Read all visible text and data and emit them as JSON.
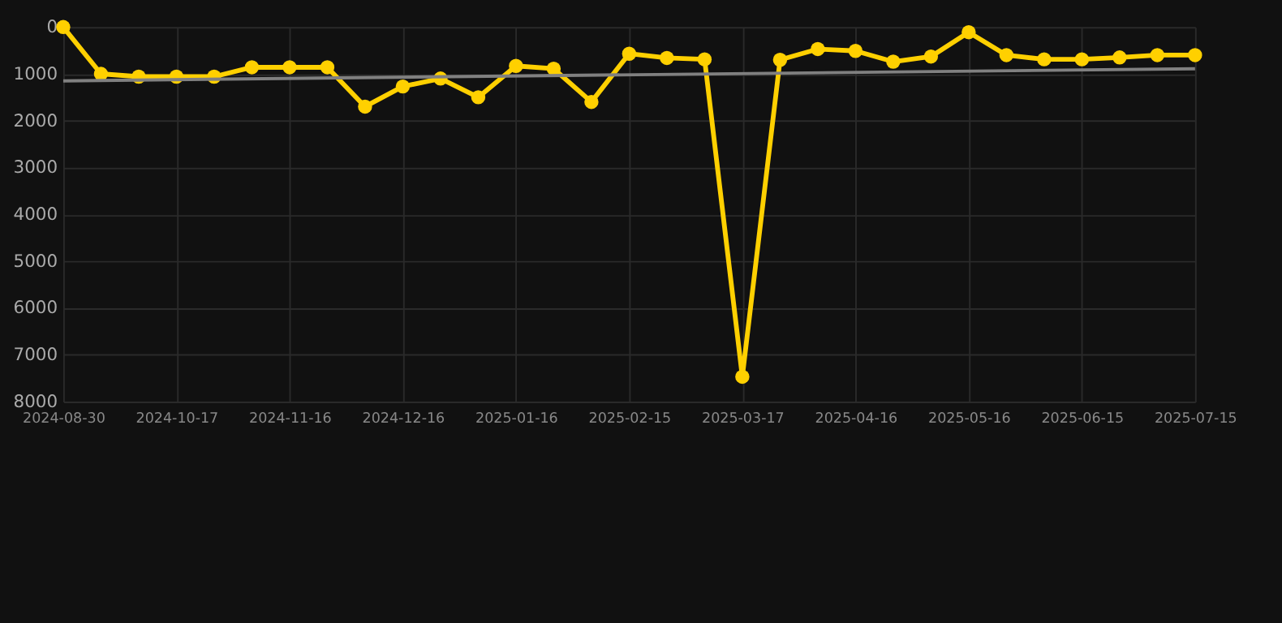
{
  "chart_data": {
    "type": "line",
    "categories": [
      "2024-08-30",
      null,
      null,
      "2024-10-17",
      null,
      null,
      "2024-11-16",
      null,
      null,
      "2024-12-16",
      null,
      null,
      "2025-01-16",
      null,
      null,
      "2025-02-15",
      null,
      null,
      "2025-03-17",
      null,
      null,
      "2025-04-16",
      null,
      null,
      "2025-05-16",
      null,
      null,
      "2025-06-15",
      null,
      null,
      "2025-07-15"
    ],
    "series": [
      {
        "color": "#ffd000",
        "marker": "circle",
        "values": [
          0,
          1000,
          1060,
          1060,
          1060,
          860,
          860,
          860,
          1700,
          1270,
          1100,
          1500,
          830,
          890,
          1600,
          570,
          660,
          690,
          7470,
          700,
          470,
          510,
          740,
          630,
          110,
          600,
          690,
          690,
          650,
          600,
          600
        ]
      },
      {
        "type": "line",
        "color": "#808080",
        "marker": "none",
        "values": [
          1150,
          null,
          null,
          null,
          null,
          null,
          null,
          null,
          null,
          null,
          null,
          null,
          null,
          null,
          null,
          null,
          null,
          null,
          null,
          null,
          null,
          null,
          null,
          null,
          null,
          null,
          null,
          null,
          null,
          null,
          890
        ]
      }
    ],
    "ylim": [
      8000,
      0
    ],
    "yticks": [
      0,
      1000,
      2000,
      3000,
      4000,
      5000,
      6000,
      7000,
      8000
    ],
    "grid": true
  }
}
